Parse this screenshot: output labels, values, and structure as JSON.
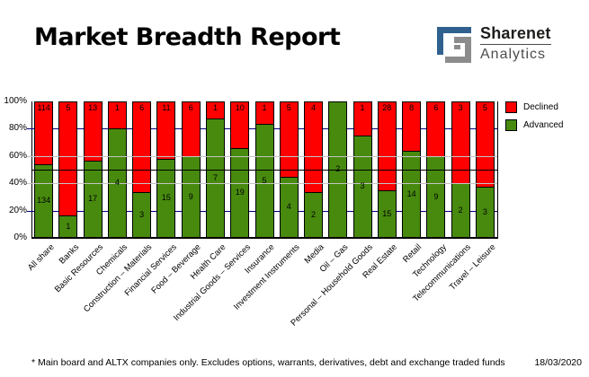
{
  "header": {
    "title": "Market Breadth Report",
    "logo": {
      "line1": "Sharenet",
      "line2": "Analytics"
    }
  },
  "colors": {
    "declined": "#ff0000",
    "advanced": "#478a0e",
    "grid_major_navy": "#000080",
    "grid_minor_gray": "#c4c4c4",
    "reference_line": "#000000",
    "logo_navy": "#30618e",
    "logo_gray": "#8c8c8c"
  },
  "chart_data": {
    "type": "bar",
    "subtype": "100-percent-stacked-column",
    "title": "Market Breadth Report",
    "categories": [
      "All share",
      "Banks",
      "Basic Resources",
      "Chemicals",
      "Construction – Materials",
      "Financial Services",
      "Food – Beverage",
      "Health Care",
      "Industrial Goods – Services",
      "Insurance",
      "Investment Instruments",
      "Media",
      "Oil – Gas",
      "Personal – Household Goods",
      "Real Estate",
      "Retail",
      "Technology",
      "Telecommunications",
      "Travel – Leisure"
    ],
    "series": [
      {
        "name": "Declined",
        "color": "#ff0000",
        "values": [
          114,
          5,
          13,
          1,
          6,
          11,
          6,
          1,
          10,
          1,
          5,
          4,
          0,
          1,
          28,
          8,
          6,
          3,
          5
        ]
      },
      {
        "name": "Advanced",
        "color": "#478a0e",
        "values": [
          134,
          1,
          17,
          4,
          3,
          15,
          9,
          7,
          19,
          5,
          4,
          2,
          2,
          3,
          15,
          14,
          9,
          2,
          3
        ]
      }
    ],
    "ylim": [
      0,
      100
    ],
    "yticks": [
      "0%",
      "20%",
      "40%",
      "60%",
      "80%",
      "100%"
    ],
    "grid": {
      "navy_lines_pct": [
        20,
        80
      ],
      "gray_lines_pct": [
        40,
        60
      ],
      "reference_line_pct": 50
    },
    "legend_position": "top-right",
    "data_labels": "declined count at bar top, advanced count centered in green segment"
  },
  "footer": {
    "note": "* Main board and ALTX companies only. Excludes options, warrants, derivatives, debt and exchange traded funds",
    "date": "18/03/2020"
  }
}
